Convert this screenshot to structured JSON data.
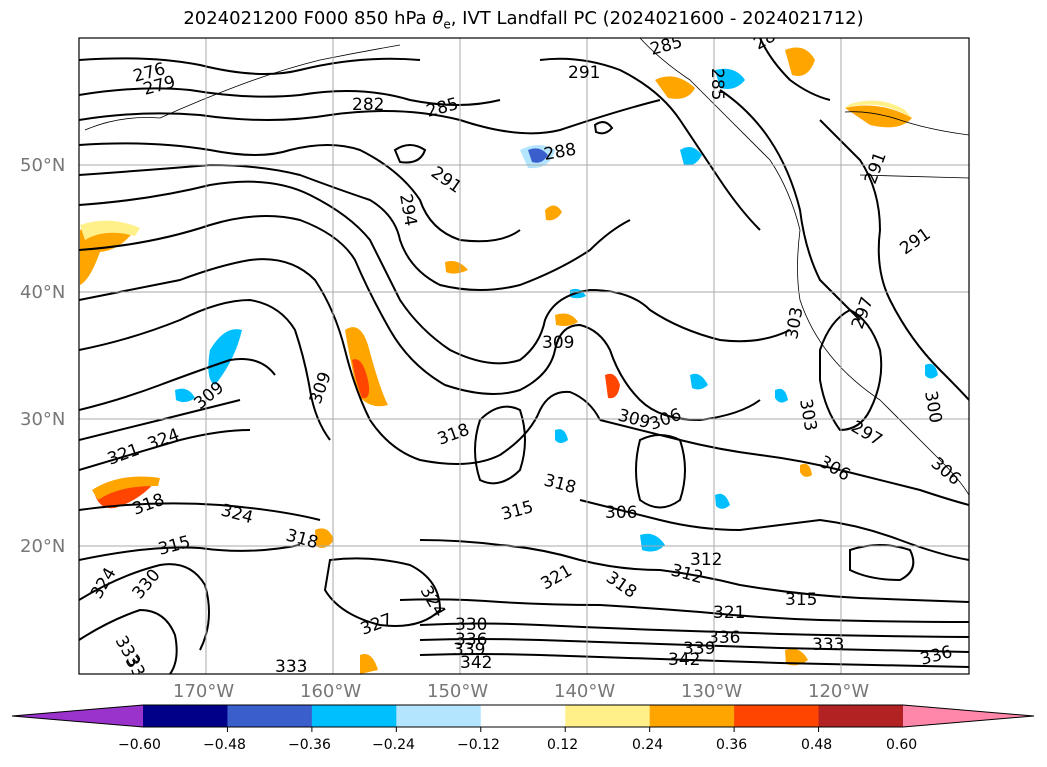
{
  "title_text": "2024021200 F000 850 hPa",
  "title_symbol": "θ",
  "title_subscript": "e",
  "title_suffix": ", IVT Landfall PC (2024021600 - 2024021712)",
  "lat_ticks": [
    "50°N",
    "40°N",
    "30°N",
    "20°N"
  ],
  "lon_ticks": [
    "170°W",
    "160°W",
    "150°W",
    "140°W",
    "130°W",
    "120°W"
  ],
  "colorbar": {
    "colors": [
      "#9933cc",
      "#000088",
      "#3a5fcd",
      "#00bfff",
      "#b3e5ff",
      "#ffffff",
      "#fff08a",
      "#ffa500",
      "#ff4500",
      "#b22222",
      "#ff88aa"
    ],
    "tick_labels": [
      "−0.60",
      "−0.48",
      "−0.36",
      "−0.24",
      "−0.12",
      "0.12",
      "0.24",
      "0.36",
      "0.48",
      "0.60"
    ]
  },
  "contour_labels": [
    "276",
    "279",
    "282",
    "285",
    "285",
    "285",
    "288",
    "288",
    "291",
    "291",
    "291",
    "291",
    "294",
    "297",
    "297",
    "300",
    "303",
    "303",
    "306",
    "306",
    "306",
    "306",
    "309",
    "309",
    "309",
    "309",
    "312",
    "315",
    "315",
    "315",
    "318",
    "318",
    "318",
    "318",
    "318",
    "321",
    "321",
    "321",
    "324",
    "324",
    "324",
    "324",
    "327",
    "330",
    "330",
    "333",
    "333",
    "333",
    "336",
    "336",
    "336",
    "339",
    "339",
    "342",
    "342",
    "333",
    "312"
  ]
}
